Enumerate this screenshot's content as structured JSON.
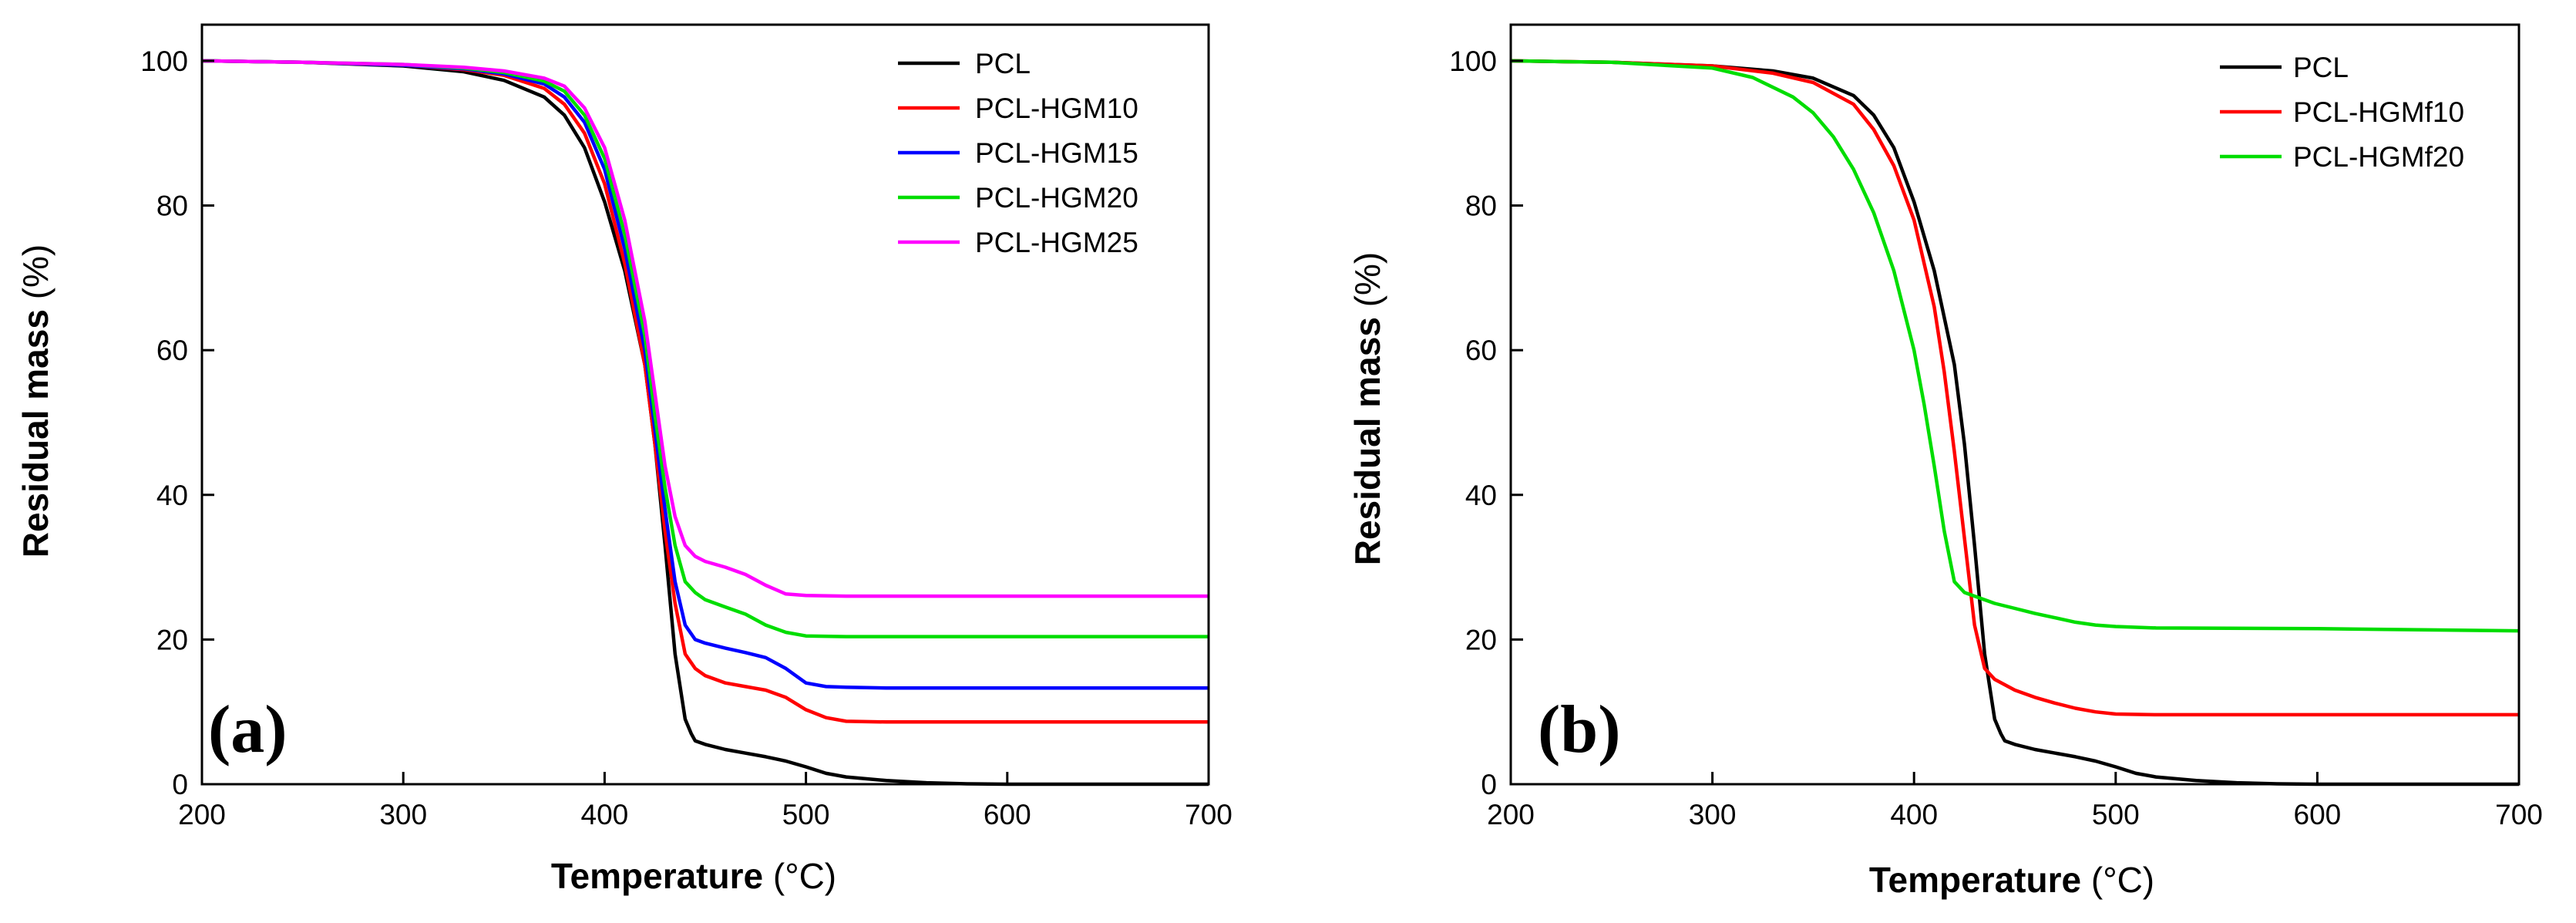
{
  "chart_data": [
    {
      "type": "line",
      "panel_label": "(a)",
      "xlabel_main": "Temperature",
      "xlabel_unit": " (°C)",
      "ylabel_main": "Residual mass",
      "ylabel_unit": " (%)",
      "xlim": [
        200,
        700
      ],
      "ylim": [
        0,
        105
      ],
      "xticks": [
        200,
        300,
        400,
        500,
        600,
        700
      ],
      "yticks": [
        0,
        20,
        40,
        60,
        80,
        100
      ],
      "xtick_labels": [
        "200",
        "300",
        "400",
        "500",
        "600",
        "700"
      ],
      "ytick_labels": [
        "0",
        "20",
        "40",
        "60",
        "80",
        "100"
      ],
      "grid": false,
      "legend_position": "top-right",
      "series": [
        {
          "name": "PCL",
          "color": "#000000",
          "x": [
            200,
            250,
            300,
            330,
            350,
            370,
            380,
            390,
            400,
            410,
            420,
            425,
            430,
            435,
            440,
            443,
            445,
            450,
            460,
            470,
            480,
            490,
            500,
            510,
            520,
            540,
            560,
            580,
            600,
            650,
            700
          ],
          "y": [
            100,
            99.8,
            99.3,
            98.5,
            97.3,
            95,
            92.5,
            88,
            80.5,
            71,
            58,
            47,
            33,
            18,
            9,
            7,
            6,
            5.5,
            4.8,
            4.3,
            3.8,
            3.2,
            2.4,
            1.5,
            1.0,
            0.5,
            0.2,
            0.05,
            0,
            0,
            0
          ]
        },
        {
          "name": "PCL-HGM10",
          "color": "#ff0000",
          "x": [
            200,
            250,
            300,
            330,
            350,
            370,
            380,
            390,
            400,
            410,
            420,
            425,
            430,
            435,
            440,
            445,
            450,
            460,
            470,
            480,
            490,
            500,
            510,
            520,
            540,
            600,
            700
          ],
          "y": [
            100,
            99.8,
            99.4,
            98.8,
            98,
            96.2,
            94,
            90,
            83,
            72,
            58,
            47,
            35,
            25,
            18,
            16,
            15,
            14,
            13.5,
            13,
            12,
            10.3,
            9.2,
            8.7,
            8.6,
            8.6,
            8.6
          ]
        },
        {
          "name": "PCL-HGM15",
          "color": "#0000ff",
          "x": [
            200,
            250,
            300,
            330,
            350,
            370,
            380,
            390,
            400,
            410,
            420,
            425,
            430,
            435,
            440,
            445,
            450,
            460,
            470,
            480,
            490,
            500,
            510,
            520,
            540,
            600,
            700
          ],
          "y": [
            100,
            99.8,
            99.4,
            98.9,
            98.2,
            96.8,
            95,
            91.5,
            85,
            74,
            60,
            49,
            38,
            28,
            22,
            20,
            19.5,
            18.8,
            18.2,
            17.5,
            16,
            14,
            13.5,
            13.4,
            13.3,
            13.3,
            13.3
          ]
        },
        {
          "name": "PCL-HGM20",
          "color": "#00dd00",
          "x": [
            200,
            250,
            300,
            330,
            350,
            370,
            380,
            390,
            400,
            410,
            420,
            425,
            430,
            435,
            440,
            445,
            450,
            460,
            470,
            480,
            490,
            500,
            520,
            540,
            600,
            700
          ],
          "y": [
            100,
            99.8,
            99.5,
            99,
            98.4,
            97.2,
            95.8,
            92.5,
            86.5,
            76,
            62,
            51,
            41,
            33,
            28,
            26.5,
            25.5,
            24.5,
            23.5,
            22,
            21,
            20.5,
            20.4,
            20.4,
            20.4,
            20.4
          ]
        },
        {
          "name": "PCL-HGM25",
          "color": "#ff00ff",
          "x": [
            200,
            250,
            300,
            330,
            350,
            370,
            380,
            390,
            400,
            410,
            420,
            425,
            430,
            435,
            440,
            445,
            450,
            460,
            470,
            480,
            490,
            500,
            520,
            600,
            700
          ],
          "y": [
            100,
            99.8,
            99.5,
            99.1,
            98.6,
            97.6,
            96.5,
            93.5,
            88,
            78,
            64,
            54,
            44,
            37,
            33,
            31.5,
            30.8,
            30,
            29,
            27.5,
            26.3,
            26.1,
            26,
            26,
            26
          ]
        }
      ]
    },
    {
      "type": "line",
      "panel_label": "(b)",
      "xlabel_main": "Temperature",
      "xlabel_unit": " (°C)",
      "ylabel_main": "Residual mass",
      "ylabel_unit": " (%)",
      "xlim": [
        200,
        700
      ],
      "ylim": [
        0,
        105
      ],
      "xticks": [
        200,
        300,
        400,
        500,
        600,
        700
      ],
      "yticks": [
        0,
        20,
        40,
        60,
        80,
        100
      ],
      "xtick_labels": [
        "200",
        "300",
        "400",
        "500",
        "600",
        "700"
      ],
      "ytick_labels": [
        "0",
        "20",
        "40",
        "60",
        "80",
        "100"
      ],
      "grid": false,
      "legend_position": "top-right",
      "series": [
        {
          "name": "PCL",
          "color": "#000000",
          "x": [
            200,
            250,
            300,
            330,
            350,
            370,
            380,
            390,
            400,
            410,
            420,
            425,
            430,
            435,
            440,
            443,
            445,
            450,
            460,
            470,
            480,
            490,
            500,
            510,
            520,
            540,
            560,
            580,
            600,
            650,
            700
          ],
          "y": [
            100,
            99.8,
            99.3,
            98.6,
            97.6,
            95.2,
            92.5,
            88,
            80.5,
            71,
            58,
            47,
            33,
            18,
            9,
            7,
            6,
            5.5,
            4.8,
            4.3,
            3.8,
            3.2,
            2.4,
            1.5,
            1.0,
            0.5,
            0.2,
            0.05,
            0,
            0,
            0
          ]
        },
        {
          "name": "PCL-HGMf10",
          "color": "#ff0000",
          "x": [
            200,
            250,
            300,
            330,
            350,
            370,
            380,
            390,
            400,
            410,
            415,
            420,
            425,
            430,
            435,
            440,
            450,
            460,
            470,
            480,
            490,
            500,
            520,
            600,
            700
          ],
          "y": [
            100,
            99.8,
            99.3,
            98.3,
            97,
            94,
            90.5,
            85.5,
            78,
            66,
            57,
            46,
            34,
            22,
            16,
            14.5,
            13,
            12,
            11.2,
            10.5,
            10,
            9.7,
            9.6,
            9.6,
            9.6
          ]
        },
        {
          "name": "PCL-HGMf20",
          "color": "#00dd00",
          "x": [
            200,
            250,
            300,
            320,
            340,
            350,
            360,
            370,
            380,
            390,
            400,
            405,
            410,
            415,
            420,
            425,
            430,
            440,
            450,
            460,
            470,
            480,
            490,
            500,
            520,
            600,
            700
          ],
          "y": [
            100,
            99.8,
            99,
            97.7,
            95,
            92.8,
            89.5,
            85,
            79,
            71,
            60,
            52.5,
            44,
            35,
            28,
            26.5,
            26,
            25,
            24.3,
            23.6,
            23,
            22.4,
            22,
            21.8,
            21.6,
            21.5,
            21.2
          ]
        }
      ]
    }
  ]
}
